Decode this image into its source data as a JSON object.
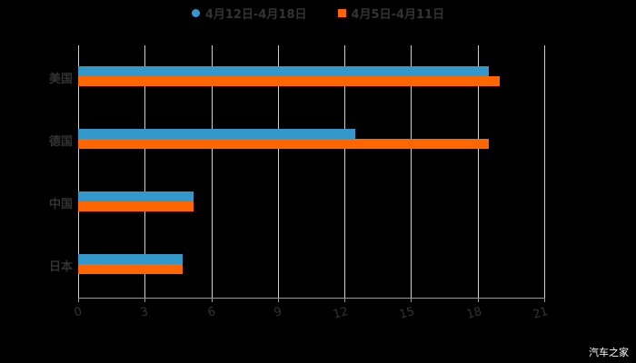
{
  "chart_data": {
    "type": "bar",
    "orientation": "horizontal",
    "categories": [
      "美国",
      "德国",
      "中国",
      "日本"
    ],
    "series": [
      {
        "name": "4月12日-4月18日",
        "color": "#3399cc",
        "values": [
          18.5,
          12.5,
          5.2,
          4.7
        ]
      },
      {
        "name": "4月5日-4月11日",
        "color": "#ff6600",
        "values": [
          19.0,
          18.5,
          5.2,
          4.7
        ]
      }
    ],
    "xlim": [
      0,
      21
    ],
    "xticks": [
      "0",
      "3",
      "6",
      "9",
      "12",
      "15",
      "18",
      "21"
    ],
    "legend_position": "top",
    "grid": true
  },
  "watermark": "汽车之家"
}
